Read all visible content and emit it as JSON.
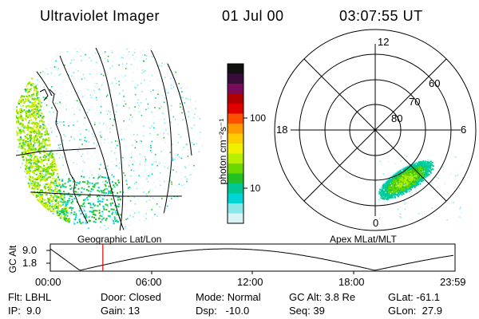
{
  "header": {
    "instrument": "Ultraviolet Imager",
    "date": "01 Jul 00",
    "time": "03:07:55 UT"
  },
  "left_panel": {
    "label": "Geographic Lat/Lon"
  },
  "right_panel": {
    "label": "Apex MLat/MLT",
    "mlt_labels": {
      "top": "12",
      "left": "18",
      "right": "6",
      "bottom": "0"
    },
    "lat_labels": [
      "60",
      "70",
      "80"
    ]
  },
  "colorbar": {
    "unit_label": "photon cm⁻²s⁻¹",
    "tick_labels": [
      "100",
      "10"
    ],
    "scale": "log",
    "colors": [
      "#111111",
      "#3a0a3a",
      "#7a0a5a",
      "#b00000",
      "#e00000",
      "#ff5000",
      "#ff9900",
      "#ffcc00",
      "#f0f000",
      "#b8ef00",
      "#6cd800",
      "#22c020",
      "#00c890",
      "#00d4d4",
      "#88e8e8",
      "#d8f4f4"
    ]
  },
  "timeline": {
    "ylabel": "GC Alt",
    "yticks": [
      "9.0",
      "1.8"
    ],
    "xticks": [
      "00:00",
      "06:00",
      "12:00",
      "18:00",
      "23:59"
    ],
    "marker_time": "03:07",
    "marker_color": "#e00000"
  },
  "info": {
    "row1": [
      "Flt: LBHL",
      "Door: Closed",
      "Mode: Normal",
      "GC Alt: 3.8 Re",
      "GLat: -61.1"
    ],
    "row2": [
      "IP:  9.0",
      "Gain: 13",
      "Dsp:   -10.0",
      "Seq: 39",
      "GLon:  27.9"
    ]
  }
}
